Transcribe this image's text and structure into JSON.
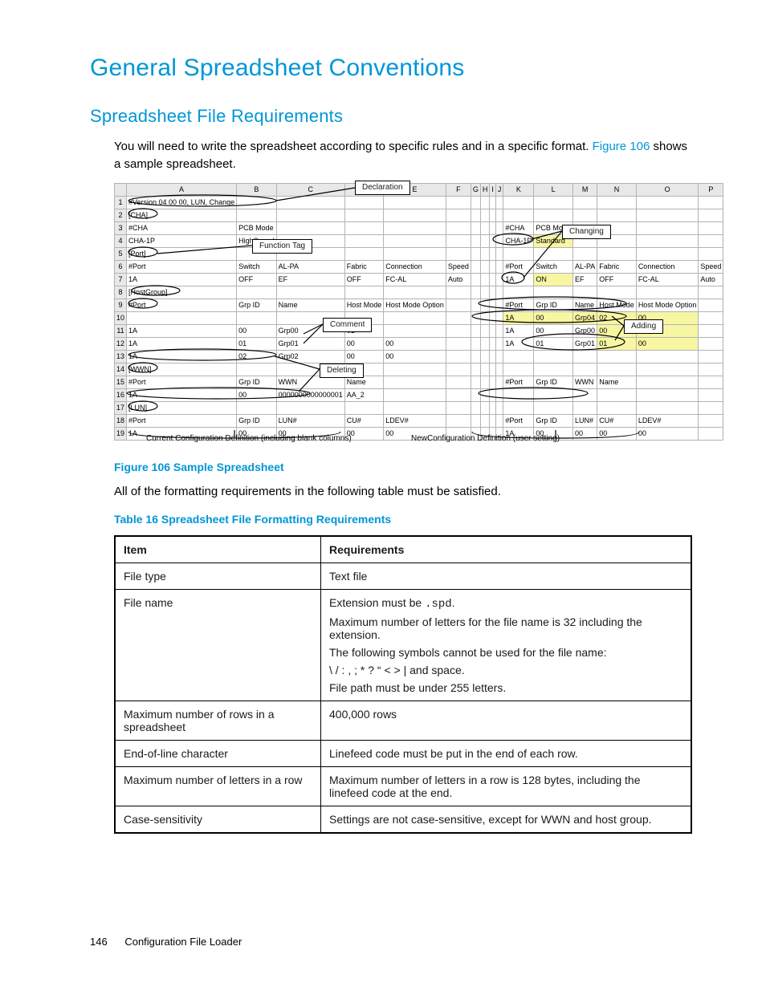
{
  "h1": "General Spreadsheet Conventions",
  "h2": "Spreadsheet File Requirements",
  "p1a": "You will need to write the spreadsheet according to specific rules and in a specific format. ",
  "p1link": "Figure 106",
  "p1b": " shows a sample spreadsheet.",
  "figCaption": "Figure 106 Sample Spreadsheet",
  "afterFig": "All of the formatting requirements in the following table must be satisfied.",
  "tblCaption": "Table 16 Spreadsheet File Formatting Requirements",
  "footnoteLeft": "Current Configuration Definition (including blank columns)",
  "footnoteRight": "NewConfiguration Definition (user setting)",
  "tags": {
    "declaration": "Declaration",
    "functionTag": "Function Tag",
    "comment": "Comment",
    "deleting": "Deleting",
    "changing": "Changing",
    "adding": "Adding"
  },
  "colHeads": [
    "",
    "A",
    "B",
    "C",
    "D",
    "E",
    "F",
    "G",
    "H",
    "I",
    "J",
    "K",
    "L",
    "M",
    "N",
    "O",
    "P"
  ],
  "rows": [
    [
      "1",
      "#Version 04 00 00, LUN, Change",
      "",
      "",
      "",
      "",
      "",
      "",
      "",
      "",
      "",
      "",
      "",
      "",
      "",
      "",
      ""
    ],
    [
      "2",
      "[CHA]",
      "",
      "",
      "",
      "",
      "",
      "",
      "",
      "",
      "",
      "",
      "",
      "",
      "",
      "",
      ""
    ],
    [
      "3",
      "#CHA",
      "PCB Mode",
      "",
      "",
      "",
      "",
      "",
      "",
      "",
      "",
      "#CHA",
      "PCB Mode",
      "",
      "",
      "",
      ""
    ],
    [
      "4",
      "CHA-1P",
      "HighSpeed",
      "",
      "",
      "",
      "",
      "",
      "",
      "",
      "",
      "CHA-1P",
      "Standard",
      "",
      "",
      "",
      ""
    ],
    [
      "5",
      "[Port]",
      "",
      "",
      "",
      "",
      "",
      "",
      "",
      "",
      "",
      "",
      "",
      "",
      "",
      "",
      ""
    ],
    [
      "6",
      "#Port",
      "Switch",
      "AL-PA",
      "Fabric",
      "Connection",
      "Speed",
      "",
      "",
      "",
      "",
      "#Port",
      "Switch",
      "AL-PA",
      "Fabric",
      "Connection",
      "Speed"
    ],
    [
      "7",
      "1A",
      "OFF",
      "EF",
      "OFF",
      "FC-AL",
      "Auto",
      "",
      "",
      "",
      "",
      "1A",
      "ON",
      "EF",
      "OFF",
      "FC-AL",
      "Auto"
    ],
    [
      "8",
      "[HostGroup]",
      "",
      "",
      "",
      "",
      "",
      "",
      "",
      "",
      "",
      "",
      "",
      "",
      "",
      "",
      ""
    ],
    [
      "9",
      "#Port",
      "Grp ID",
      "Name",
      "Host Mode",
      "Host Mode Option",
      "",
      "",
      "",
      "",
      "",
      "#Port",
      "Grp ID",
      "Name",
      "Host Mode",
      "Host Mode Option",
      ""
    ],
    [
      "10",
      "",
      "",
      "",
      "",
      "",
      "",
      "",
      "",
      "",
      "",
      "1A",
      "00",
      "Grp04",
      "02",
      "00",
      ""
    ],
    [
      "11",
      "1A",
      "00",
      "Grp00",
      "01",
      "",
      "",
      "",
      "",
      "",
      "",
      "1A",
      "00",
      "Grp00",
      "00",
      "01",
      ""
    ],
    [
      "12",
      "1A",
      "01",
      "Grp01",
      "00",
      "00",
      "",
      "",
      "",
      "",
      "",
      "1A",
      "01",
      "Grp01",
      "01",
      "00",
      ""
    ],
    [
      "13",
      "1A",
      "02",
      "Grp02",
      "00",
      "00",
      "",
      "",
      "",
      "",
      "",
      "",
      "",
      "",
      "",
      "",
      ""
    ],
    [
      "14",
      "[WWN]",
      "",
      "",
      "",
      "",
      "",
      "",
      "",
      "",
      "",
      "",
      "",
      "",
      "",
      "",
      ""
    ],
    [
      "15",
      "#Port",
      "Grp ID",
      "WWN",
      "Name",
      "",
      "",
      "",
      "",
      "",
      "",
      "#Port",
      "Grp ID",
      "WWN",
      "Name",
      "",
      ""
    ],
    [
      "16",
      "1A",
      "00",
      "0000000000000001",
      "AA_2",
      "",
      "",
      "",
      "",
      "",
      "",
      "",
      "",
      "",
      "",
      "",
      ""
    ],
    [
      "17",
      "[LUN]",
      "",
      "",
      "",
      "",
      "",
      "",
      "",
      "",
      "",
      "",
      "",
      "",
      "",
      "",
      ""
    ],
    [
      "18",
      "#Port",
      "Grp ID",
      "LUN#",
      "CU#",
      "LDEV#",
      "",
      "",
      "",
      "",
      "",
      "#Port",
      "Grp ID",
      "LUN#",
      "CU#",
      "LDEV#",
      ""
    ],
    [
      "19",
      "1A",
      "00",
      "00",
      "00",
      "00",
      "",
      "",
      "",
      "",
      "",
      "1A",
      "00",
      "00",
      "00",
      "00",
      ""
    ]
  ],
  "hlCells": [
    [
      4,
      "L"
    ],
    [
      7,
      "L"
    ],
    [
      10,
      "K"
    ],
    [
      10,
      "L"
    ],
    [
      10,
      "M"
    ],
    [
      10,
      "N"
    ],
    [
      10,
      "O"
    ],
    [
      11,
      "N"
    ],
    [
      11,
      "O"
    ],
    [
      12,
      "N"
    ],
    [
      12,
      "O"
    ]
  ],
  "req": {
    "head": [
      "Item",
      "Requirements"
    ],
    "rows": [
      {
        "item": "File type",
        "req": [
          "Text file"
        ]
      },
      {
        "item": "File name",
        "req": [
          "Extension must be <span class=\"mono\">.spd</span>.",
          "Maximum number of letters for the file name is 32 including the extension.",
          "The following symbols cannot be used for the file name:",
          "\\ / : , ; * ? “ < > | and space.",
          "File path must be under 255 letters."
        ]
      },
      {
        "item": "Maximum number of rows in a spreadsheet",
        "req": [
          "400,000 rows"
        ]
      },
      {
        "item": "End-of-line character",
        "req": [
          "Linefeed code must be put in the end of each row."
        ]
      },
      {
        "item": "Maximum number of letters in a row",
        "req": [
          "Maximum number of letters in a row is 128 bytes, including the linefeed code at the end."
        ]
      },
      {
        "item": "Case-sensitivity",
        "req": [
          "Settings are not case-sensitive, except for WWN and host group."
        ]
      }
    ]
  },
  "footer": {
    "page": "146",
    "title": "Configuration File Loader"
  }
}
